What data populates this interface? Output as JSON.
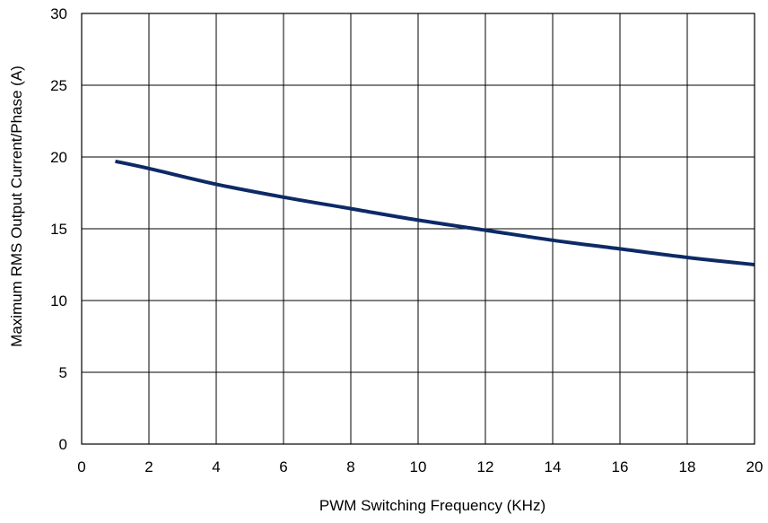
{
  "chart_data": {
    "type": "line",
    "title": "",
    "xlabel": "PWM Switching Frequency  (KHz)",
    "ylabel": "Maximum RMS Output Current/Phase  (A)",
    "xlim": [
      0,
      20
    ],
    "ylim": [
      0,
      30
    ],
    "x_ticks": [
      0,
      2,
      4,
      6,
      8,
      10,
      12,
      14,
      16,
      18,
      20
    ],
    "y_ticks": [
      0,
      5,
      10,
      15,
      20,
      25,
      30
    ],
    "grid": true,
    "legend": "none",
    "series": [
      {
        "color": "#0d2a66",
        "x": [
          1,
          2,
          4,
          6,
          8,
          10,
          12,
          14,
          16,
          18,
          20
        ],
        "y": [
          19.7,
          19.2,
          18.1,
          17.2,
          16.4,
          15.6,
          14.9,
          14.2,
          13.6,
          13.0,
          12.5
        ]
      }
    ]
  }
}
